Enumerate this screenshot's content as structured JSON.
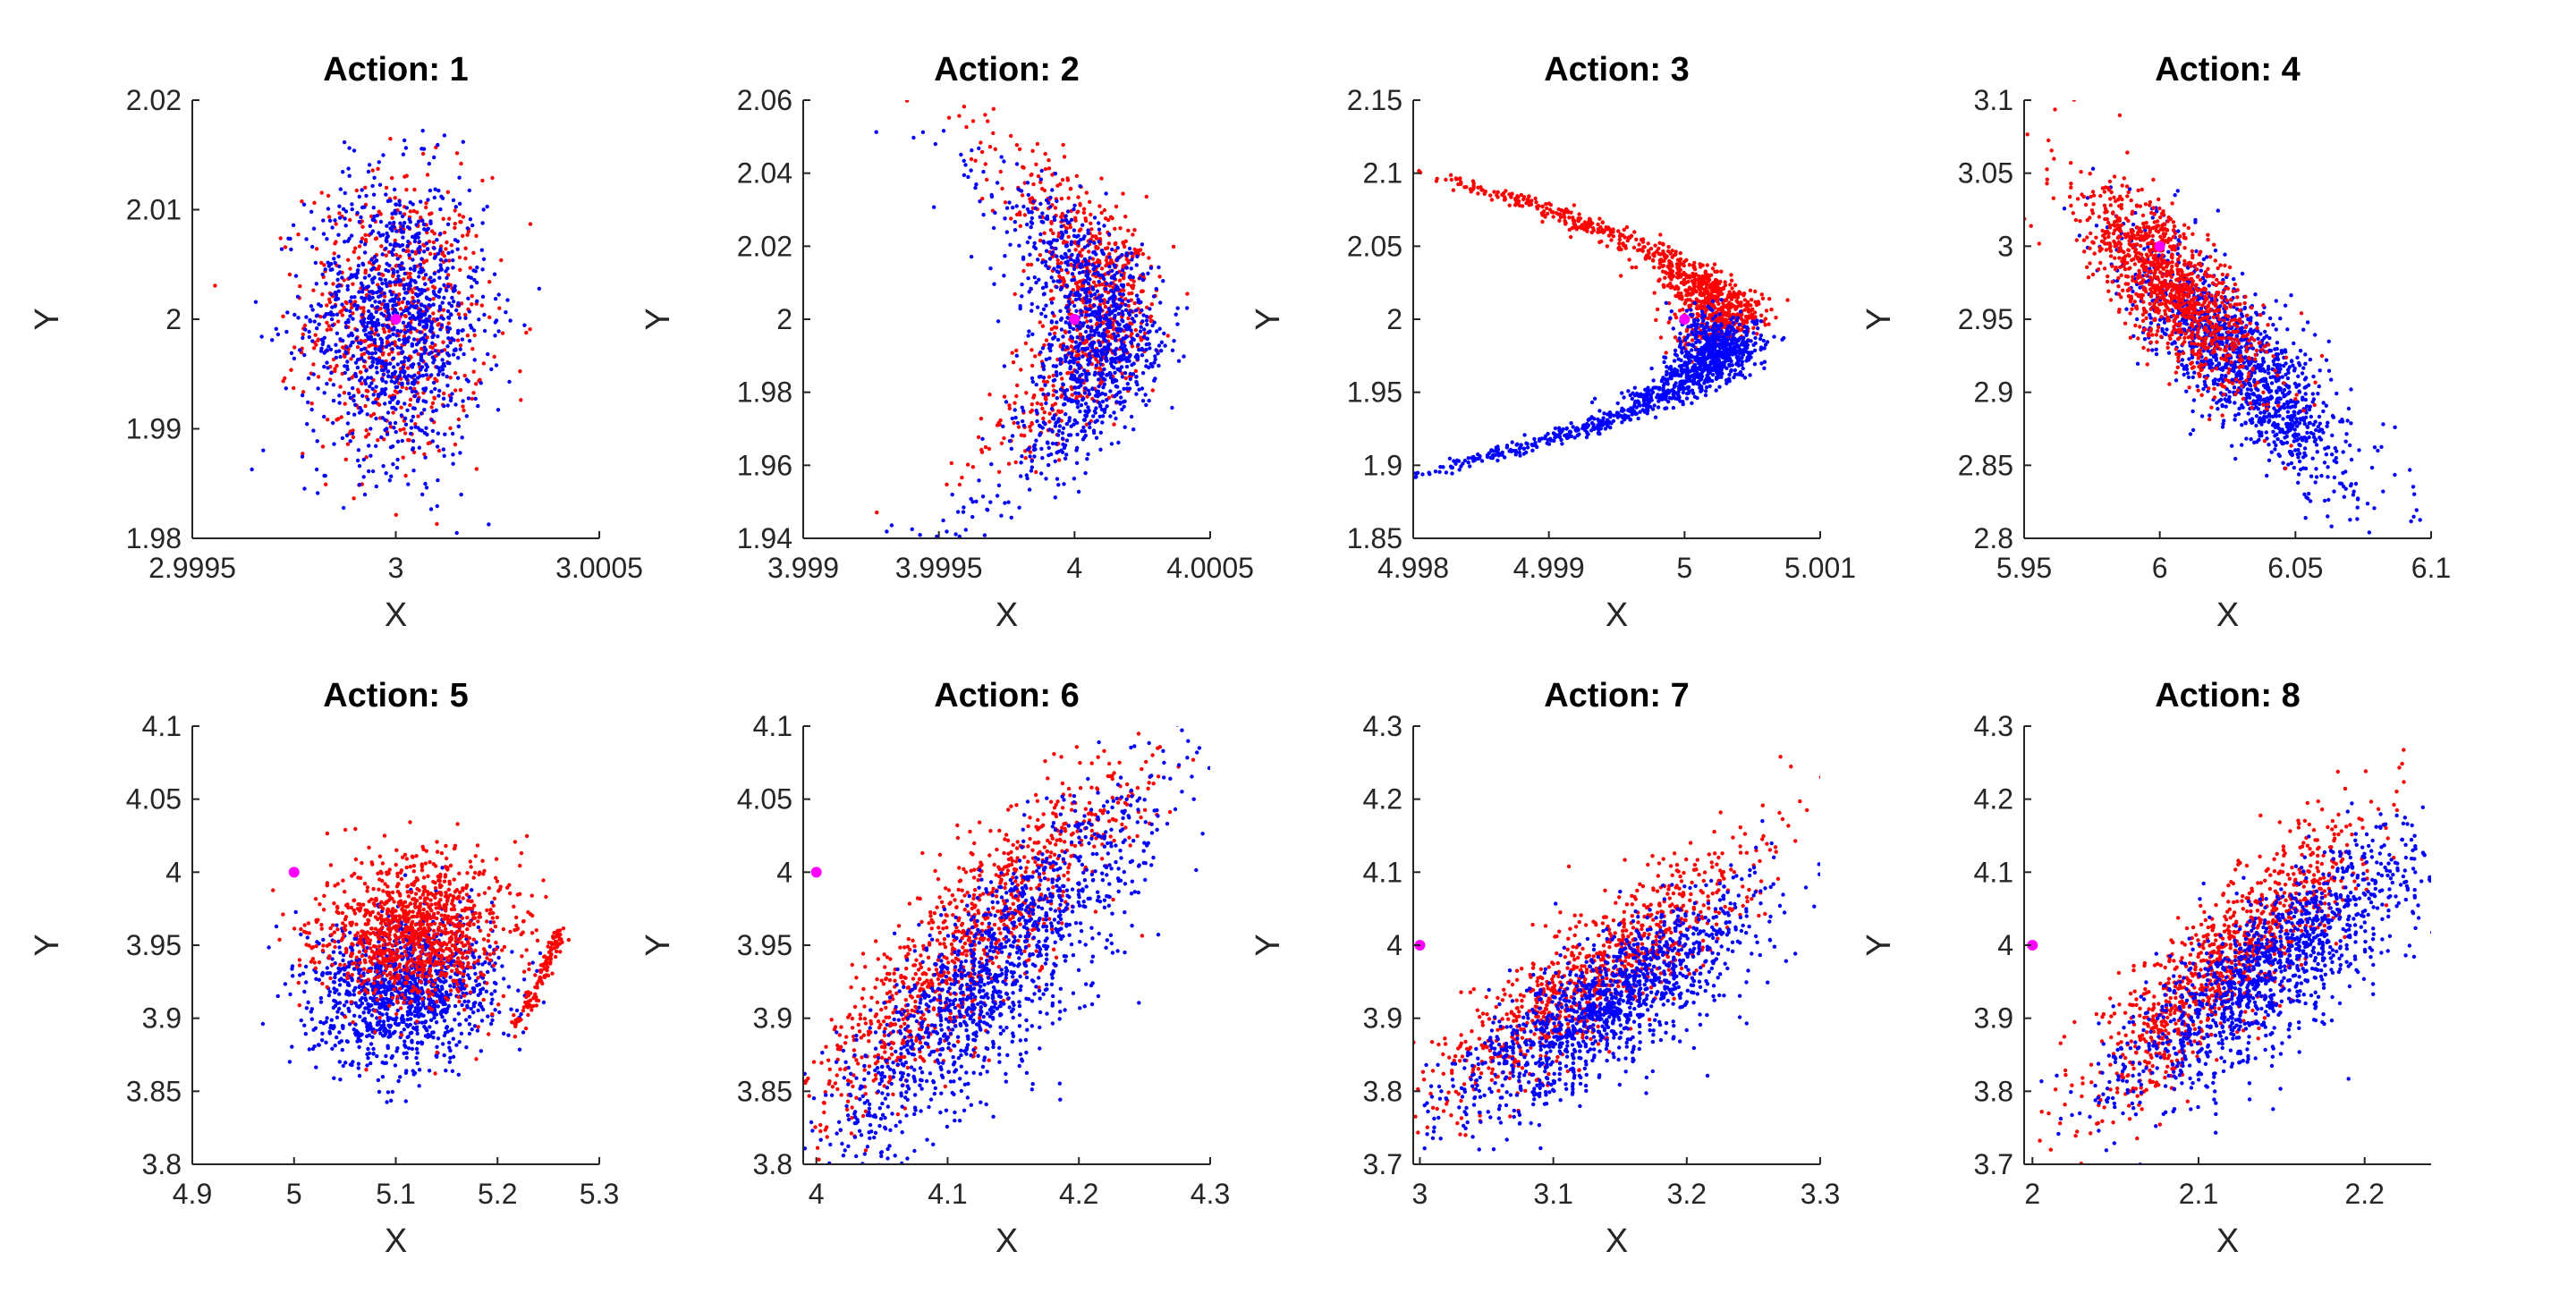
{
  "colors": {
    "series_a": "#ff0000",
    "series_b": "#0000ff",
    "marker": "#ff00ff",
    "axis": "#262626"
  },
  "chart_data": [
    {
      "type": "scatter",
      "title": "Action: 1",
      "xlabel": "X",
      "ylabel": "Y",
      "xlim": [
        2.9995,
        3.0005
      ],
      "ylim": [
        1.98,
        2.02
      ],
      "xticks": [
        "2.9995",
        "3",
        "3.0005"
      ],
      "xtick_values": [
        2.9995,
        3.0,
        3.0005
      ],
      "yticks": [
        "1.98",
        "1.99",
        "2",
        "2.01",
        "2.02"
      ],
      "ytick_values": [
        1.98,
        1.99,
        2.0,
        2.01,
        2.02
      ],
      "marker_point": {
        "x": 3.0,
        "y": 2.0
      },
      "series": [
        {
          "color": "red",
          "shape": "cloud",
          "center": [
            3.0,
            2.0
          ],
          "spread": [
            0.00011,
            0.0065
          ],
          "corr": 0.0,
          "n_points": 650
        },
        {
          "color": "blue",
          "shape": "cloud",
          "center": [
            3.0,
            2.0
          ],
          "spread": [
            0.00011,
            0.0065
          ],
          "corr": 0.0,
          "n_points": 1100
        }
      ]
    },
    {
      "type": "scatter",
      "title": "Action: 2",
      "xlabel": "X",
      "ylabel": "Y",
      "xlim": [
        3.999,
        4.0005
      ],
      "ylim": [
        1.94,
        2.06
      ],
      "xticks": [
        "3.999",
        "3.9995",
        "4",
        "4.0005"
      ],
      "xtick_values": [
        3.999,
        3.9995,
        4.0,
        4.0005
      ],
      "yticks": [
        "1.94",
        "1.96",
        "1.98",
        "2",
        "2.02",
        "2.04",
        "2.06"
      ],
      "ytick_values": [
        1.94,
        1.96,
        1.98,
        2.0,
        2.02,
        2.04,
        2.06
      ],
      "marker_point": {
        "x": 4.0,
        "y": 2.0
      },
      "series": [
        {
          "color": "red",
          "shape": "parabola",
          "x_apex": 4.0001,
          "y_center": 2.005,
          "curvature": 1.9e-07,
          "x_noise": 0.00011,
          "y_noise": 0.018,
          "n_points": 750
        },
        {
          "color": "blue",
          "shape": "parabola",
          "x_apex": 4.0001,
          "y_center": 1.995,
          "curvature": 1.9e-07,
          "x_noise": 0.00011,
          "y_noise": 0.018,
          "n_points": 1100
        }
      ]
    },
    {
      "type": "scatter",
      "title": "Action: 3",
      "xlabel": "X",
      "ylabel": "Y",
      "xlim": [
        4.998,
        5.001
      ],
      "ylim": [
        1.85,
        2.15
      ],
      "xticks": [
        "4.998",
        "4.999",
        "5",
        "5.001"
      ],
      "xtick_values": [
        4.998,
        4.999,
        5.0,
        5.001
      ],
      "yticks": [
        "1.85",
        "1.9",
        "1.95",
        "2",
        "2.05",
        "2.1",
        "2.15"
      ],
      "ytick_values": [
        1.85,
        1.9,
        1.95,
        2.0,
        2.05,
        2.1,
        2.15
      ],
      "marker_point": {
        "x": 5.0,
        "y": 2.0
      },
      "series": [
        {
          "color": "red",
          "shape": "arm",
          "x_apex": 5.0003,
          "y_apex": 2.0,
          "y_end": 2.1,
          "power": 2.4,
          "x_noise": 0.0002,
          "y_noise": 0.012,
          "n_points": 900
        },
        {
          "color": "blue",
          "shape": "arm",
          "x_apex": 5.0003,
          "y_apex": 1.985,
          "y_end": 1.895,
          "power": 2.4,
          "x_noise": 0.0002,
          "y_noise": 0.012,
          "n_points": 1100
        }
      ]
    },
    {
      "type": "scatter",
      "title": "Action: 4",
      "xlabel": "X",
      "ylabel": "Y",
      "xlim": [
        5.95,
        6.1
      ],
      "ylim": [
        2.8,
        3.1
      ],
      "xticks": [
        "5.95",
        "6",
        "6.05",
        "6.1"
      ],
      "xtick_values": [
        5.95,
        6.0,
        6.05,
        6.1
      ],
      "yticks": [
        "2.8",
        "2.85",
        "2.9",
        "2.95",
        "3",
        "3.05",
        "3.1"
      ],
      "ytick_values": [
        2.8,
        2.85,
        2.9,
        2.95,
        3.0,
        3.05,
        3.1
      ],
      "marker_point": {
        "x": 6.0,
        "y": 3.0
      },
      "series": [
        {
          "color": "blue",
          "shape": "cloud",
          "center": [
            6.03,
            2.92
          ],
          "spread": [
            0.02,
            0.04
          ],
          "corr": -0.8,
          "n_points": 1300
        },
        {
          "color": "red",
          "shape": "cloud",
          "center": [
            6.005,
            2.97
          ],
          "spread": [
            0.017,
            0.035
          ],
          "corr": -0.75,
          "n_points": 1100
        }
      ]
    },
    {
      "type": "scatter",
      "title": "Action: 5",
      "xlabel": "X",
      "ylabel": "Y",
      "xlim": [
        4.9,
        5.3
      ],
      "ylim": [
        3.8,
        4.1
      ],
      "xticks": [
        "4.9",
        "5",
        "5.1",
        "5.2",
        "5.3"
      ],
      "xtick_values": [
        4.9,
        5.0,
        5.1,
        5.2,
        5.3
      ],
      "yticks": [
        "3.8",
        "3.85",
        "3.9",
        "3.95",
        "4",
        "4.05",
        "4.1"
      ],
      "ytick_values": [
        3.8,
        3.85,
        3.9,
        3.95,
        4.0,
        4.05,
        4.1
      ],
      "marker_point": {
        "x": 5.0,
        "y": 4.0
      },
      "series": [
        {
          "color": "blue",
          "shape": "cloud",
          "center": [
            5.11,
            3.92
          ],
          "spread": [
            0.045,
            0.025
          ],
          "corr": 0.1,
          "n_points": 1200
        },
        {
          "color": "red",
          "shape": "cloud",
          "center": [
            5.12,
            3.96
          ],
          "spread": [
            0.045,
            0.025
          ],
          "corr": 0.1,
          "n_points": 1100
        },
        {
          "color": "red",
          "shape": "streak",
          "from": [
            5.215,
            3.89
          ],
          "to": [
            5.265,
            3.96
          ],
          "noise": [
            0.003,
            0.004
          ],
          "n_points": 120
        }
      ]
    },
    {
      "type": "scatter",
      "title": "Action: 6",
      "xlabel": "X",
      "ylabel": "Y",
      "xlim": [
        3.99,
        4.3
      ],
      "ylim": [
        3.8,
        4.1
      ],
      "xticks": [
        "4",
        "4.1",
        "4.2",
        "4.3"
      ],
      "xtick_values": [
        4.0,
        4.1,
        4.2,
        4.3
      ],
      "yticks": [
        "3.8",
        "3.85",
        "3.9",
        "3.95",
        "4",
        "4.05",
        "4.1"
      ],
      "ytick_values": [
        3.8,
        3.85,
        3.9,
        3.95,
        4.0,
        4.05,
        4.1
      ],
      "marker_point": {
        "x": 4.0,
        "y": 4.0
      },
      "series": [
        {
          "color": "red",
          "shape": "band",
          "x_range": [
            4.0,
            4.23
          ],
          "line_from": [
            4.0,
            3.85
          ],
          "line_to": [
            4.23,
            4.05
          ],
          "noise": 0.03,
          "n_points": 1000
        },
        {
          "color": "blue",
          "shape": "band",
          "x_range": [
            4.02,
            4.25
          ],
          "line_from": [
            4.02,
            3.84
          ],
          "line_to": [
            4.25,
            4.04
          ],
          "noise": 0.03,
          "drip": true,
          "n_points": 1300
        }
      ]
    },
    {
      "type": "scatter",
      "title": "Action: 7",
      "xlabel": "X",
      "ylabel": "Y",
      "xlim": [
        2.995,
        3.3
      ],
      "ylim": [
        3.7,
        4.3
      ],
      "xticks": [
        "3",
        "3.1",
        "3.2",
        "3.3"
      ],
      "xtick_values": [
        3.0,
        3.1,
        3.2,
        3.3
      ],
      "yticks": [
        "3.7",
        "3.8",
        "3.9",
        "4",
        "4.1",
        "4.2",
        "4.3"
      ],
      "ytick_values": [
        3.7,
        3.8,
        3.9,
        4.0,
        4.1,
        4.2,
        4.3
      ],
      "marker_point": {
        "x": 3.0,
        "y": 4.0
      },
      "series": [
        {
          "color": "red",
          "shape": "band",
          "x_range": [
            3.02,
            3.24
          ],
          "line_from": [
            3.02,
            3.82
          ],
          "line_to": [
            3.24,
            4.1
          ],
          "noise": 0.045,
          "n_points": 900
        },
        {
          "color": "blue",
          "shape": "band",
          "x_range": [
            3.04,
            3.24
          ],
          "line_from": [
            3.04,
            3.82
          ],
          "line_to": [
            3.24,
            4.04
          ],
          "noise": 0.04,
          "drip": true,
          "n_points": 1300
        }
      ]
    },
    {
      "type": "scatter",
      "title": "Action: 8",
      "xlabel": "X",
      "ylabel": "Y",
      "xlim": [
        1.995,
        2.24
      ],
      "ylim": [
        3.7,
        4.3
      ],
      "xticks": [
        "2",
        "2.1",
        "2.2"
      ],
      "xtick_values": [
        2.0,
        2.1,
        2.2
      ],
      "yticks": [
        "3.7",
        "3.8",
        "3.9",
        "4",
        "4.1",
        "4.2",
        "4.3"
      ],
      "ytick_values": [
        3.7,
        3.8,
        3.9,
        4.0,
        4.1,
        4.2,
        4.3
      ],
      "marker_point": {
        "x": 2.0,
        "y": 4.0
      },
      "series": [
        {
          "color": "red",
          "shape": "band",
          "x_range": [
            2.04,
            2.19
          ],
          "line_from": [
            2.04,
            3.82
          ],
          "line_to": [
            2.19,
            4.12
          ],
          "noise": 0.05,
          "n_points": 1000
        },
        {
          "color": "blue",
          "shape": "band",
          "x_range": [
            2.06,
            2.23
          ],
          "line_from": [
            2.06,
            3.85
          ],
          "line_to": [
            2.23,
            4.12
          ],
          "noise": 0.045,
          "drip": true,
          "n_points": 1300
        }
      ]
    }
  ]
}
